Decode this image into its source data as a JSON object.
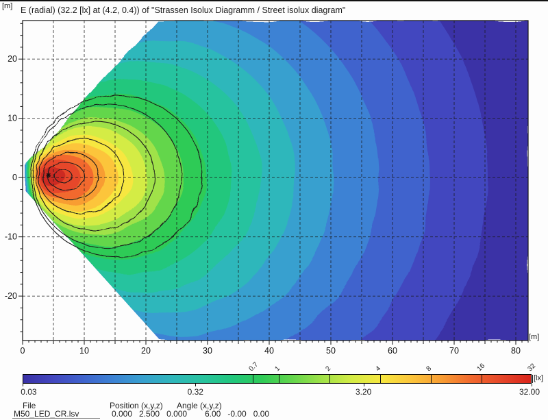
{
  "window": {
    "title": "E (radial) (32.2 [lx] at (4.2, 0.4)) of \"Strassen Isolux Diagramm / Street isolux diagram\""
  },
  "axes": {
    "y_unit": "[m]",
    "x_unit": "[m]"
  },
  "footer": {
    "file_label": "File",
    "file_value": "M50_LED_CR.lsv",
    "position_label": "Position (x,y,z)",
    "position_values": "0.000   2.500   0.000",
    "angle_label": "Angle (x,y,z)",
    "angle_values": "6.00   -0.00   0.00"
  },
  "chart_data": {
    "type": "heatmap",
    "subtype": "street-isolux-diagram",
    "title": "E (radial) (32.2 [lx] at (4.2, 0.4)) of \"Strassen Isolux Diagramm / Street isolux diagram\"",
    "x_unit": "[m]",
    "y_unit": "[m]",
    "value_unit": "[lx]",
    "x_range": [
      0,
      82
    ],
    "y_range": [
      -27.5,
      26.5
    ],
    "x_ticks": [
      0,
      10,
      20,
      30,
      40,
      50,
      60,
      70,
      80
    ],
    "y_ticks": [
      -20,
      -10,
      0,
      10,
      20
    ],
    "grid": {
      "x_step_m": 5,
      "y_step_m": 10,
      "style": "dashed",
      "color": "#1a1a1a"
    },
    "max_point": {
      "x": 4.2,
      "y": 0.4,
      "lux": 32.2,
      "marker": "asterisk"
    },
    "beam_polygon": [
      [
        0.45,
        2.0
      ],
      [
        21.9,
        26.5
      ],
      [
        82,
        26.5
      ],
      [
        82,
        -27.5
      ],
      [
        22.4,
        -27.5
      ],
      [
        0.45,
        -2.2
      ]
    ],
    "bands_center_y": 0.15,
    "bands": [
      {
        "lux_min": 0.03,
        "lux_max": 0.044,
        "color": "#3a31a6",
        "shape": "beam"
      },
      {
        "lux_min": 0.044,
        "lux_max": 0.065,
        "color": "#4347bf",
        "x_from": 0.35,
        "x_to": 75.5,
        "half_height": 43.0
      },
      {
        "lux_min": 0.065,
        "lux_max": 0.096,
        "color": "#3f63cd",
        "x_from": 0.4,
        "x_to": 66.0,
        "half_height": 37.0
      },
      {
        "lux_min": 0.096,
        "lux_max": 0.141,
        "color": "#3c82d4",
        "x_from": 0.45,
        "x_to": 57.8,
        "half_height": 31.5
      },
      {
        "lux_min": 0.141,
        "lux_max": 0.208,
        "color": "#37a0cf",
        "x_from": 0.5,
        "x_to": 50.5,
        "half_height": 27.0
      },
      {
        "lux_min": 0.208,
        "lux_max": 0.306,
        "color": "#2fb7bb",
        "x_from": 0.6,
        "x_to": 44.2,
        "half_height": 23.0
      },
      {
        "lux_min": 0.306,
        "lux_max": 0.451,
        "color": "#28c39f",
        "x_from": 0.7,
        "x_to": 38.7,
        "half_height": 19.5
      },
      {
        "lux_min": 0.451,
        "lux_max": 0.664,
        "color": "#21c77d",
        "x_from": 0.8,
        "x_to": 33.9,
        "half_height": 16.4
      },
      {
        "lux_min": 0.664,
        "lux_max": 0.978,
        "color": "#2fcb57",
        "x_from": 0.9,
        "x_to": 29.8,
        "half_height": 13.9
      },
      {
        "lux_min": 0.978,
        "lux_max": 1.44,
        "color": "#63d64c",
        "x_from": 1.05,
        "x_to": 26.1,
        "half_height": 11.7
      },
      {
        "lux_min": 1.44,
        "lux_max": 2.12,
        "color": "#a0e248",
        "x_from": 1.2,
        "x_to": 23.0,
        "half_height": 9.9
      },
      {
        "lux_min": 2.12,
        "lux_max": 3.13,
        "color": "#d4ec45",
        "x_from": 1.35,
        "x_to": 20.2,
        "half_height": 8.4
      },
      {
        "lux_min": 3.13,
        "lux_max": 4.61,
        "color": "#f7e73f",
        "x_from": 1.5,
        "x_to": 17.8,
        "half_height": 7.0
      },
      {
        "lux_min": 4.61,
        "lux_max": 6.78,
        "color": "#fcc53b",
        "x_from": 1.7,
        "x_to": 15.5,
        "half_height": 5.7
      },
      {
        "lux_min": 6.78,
        "lux_max": 9.99,
        "color": "#f89d33",
        "x_from": 1.9,
        "x_to": 13.4,
        "half_height": 4.7
      },
      {
        "lux_min": 9.99,
        "lux_max": 14.7,
        "color": "#f2692e",
        "x_from": 2.1,
        "x_to": 11.4,
        "half_height": 3.8
      },
      {
        "lux_min": 14.7,
        "lux_max": 21.7,
        "color": "#e6472a",
        "x_from": 2.4,
        "x_to": 9.3,
        "half_height": 2.9
      },
      {
        "lux_min": 21.7,
        "lux_max": 32.0,
        "color": "#cc2a20",
        "x_from": 2.8,
        "x_to": 7.0,
        "half_height": 1.6
      }
    ],
    "contours": {
      "color": "#1b1b1b",
      "values": [
        0.7,
        1,
        2,
        4,
        8,
        16,
        32
      ],
      "geometry": [
        {
          "value": 0.7,
          "x_from": 1.4,
          "x_to": 29.1,
          "half_height": 13.6
        },
        {
          "value": 1,
          "x_from": 1.7,
          "x_to": 25.8,
          "half_height": 12.1
        },
        {
          "value": 2,
          "x_from": 2.2,
          "x_to": 21.4,
          "half_height": 9.2
        },
        {
          "value": 4,
          "x_from": 2.6,
          "x_to": 16.4,
          "half_height": 6.3
        },
        {
          "value": 8,
          "x_from": 3.3,
          "x_to": 12.4,
          "half_height": 4.0
        },
        {
          "value": 16,
          "x_from": 4.0,
          "x_to": 10.0,
          "half_height": 2.3
        },
        {
          "value": 32,
          "x_from": 5.2,
          "x_to": 8.0,
          "half_height": 1.1
        }
      ]
    },
    "colorbar": {
      "unit": "[lx]",
      "scale": "log",
      "min": 0.03,
      "max": 32.0,
      "tick_values": [
        0.03,
        0.32,
        3.2,
        32.0
      ],
      "tick_labels": [
        "0.03",
        "0.32",
        "3.20",
        "32.00"
      ],
      "contour_tick_values": [
        0.7,
        1,
        2,
        4,
        8,
        16,
        32
      ],
      "contour_tick_labels": [
        "0.7",
        "1",
        "2",
        "4",
        "8",
        "16",
        "32"
      ],
      "colors": [
        "#3a31a6",
        "#4347bf",
        "#3f63cd",
        "#3c82d4",
        "#37a0cf",
        "#2fb7bb",
        "#28c39f",
        "#21c77d",
        "#2fcb57",
        "#63d64c",
        "#a0e248",
        "#d4ec45",
        "#f7e73f",
        "#fcc53b",
        "#f89d33",
        "#f2692e",
        "#e6472a",
        "#da251c"
      ]
    }
  }
}
